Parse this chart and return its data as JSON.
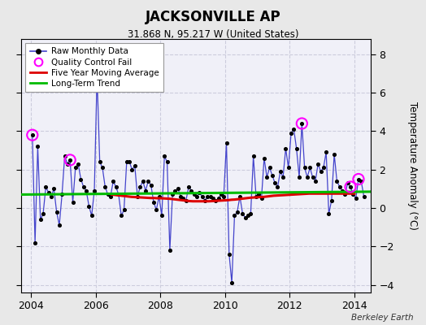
{
  "title": "JACKSONVILLE AP",
  "subtitle": "31.868 N, 95.217 W (United States)",
  "ylabel": "Temperature Anomaly (°C)",
  "credit": "Berkeley Earth",
  "ylim": [
    -4.4,
    8.8
  ],
  "yticks": [
    -4,
    -2,
    0,
    2,
    4,
    6,
    8
  ],
  "xlim": [
    2003.7,
    2014.5
  ],
  "xticks": [
    2004,
    2006,
    2008,
    2010,
    2012,
    2014
  ],
  "bg_color": "#e8e8e8",
  "plot_bg_color": "#f0f0f8",
  "grid_color": "#ccccdd",
  "raw_color": "#4444cc",
  "raw_dot_color": "#000000",
  "ma_color": "#dd0000",
  "trend_color": "#00bb00",
  "qc_color": "#ff00ff",
  "raw_x": [
    2004.0417,
    2004.125,
    2004.208,
    2004.292,
    2004.375,
    2004.458,
    2004.542,
    2004.625,
    2004.708,
    2004.792,
    2004.875,
    2004.958,
    2005.042,
    2005.125,
    2005.208,
    2005.292,
    2005.375,
    2005.458,
    2005.542,
    2005.625,
    2005.708,
    2005.792,
    2005.875,
    2005.958,
    2006.042,
    2006.125,
    2006.208,
    2006.292,
    2006.375,
    2006.458,
    2006.542,
    2006.625,
    2006.708,
    2006.792,
    2006.875,
    2006.958,
    2007.042,
    2007.125,
    2007.208,
    2007.292,
    2007.375,
    2007.458,
    2007.542,
    2007.625,
    2007.708,
    2007.792,
    2007.875,
    2007.958,
    2008.042,
    2008.125,
    2008.208,
    2008.292,
    2008.375,
    2008.458,
    2008.542,
    2008.625,
    2008.708,
    2008.792,
    2008.875,
    2008.958,
    2009.042,
    2009.125,
    2009.208,
    2009.292,
    2009.375,
    2009.458,
    2009.542,
    2009.625,
    2009.708,
    2009.792,
    2009.875,
    2009.958,
    2010.042,
    2010.125,
    2010.208,
    2010.292,
    2010.375,
    2010.458,
    2010.542,
    2010.625,
    2010.708,
    2010.792,
    2010.875,
    2010.958,
    2011.042,
    2011.125,
    2011.208,
    2011.292,
    2011.375,
    2011.458,
    2011.542,
    2011.625,
    2011.708,
    2011.792,
    2011.875,
    2011.958,
    2012.042,
    2012.125,
    2012.208,
    2012.292,
    2012.375,
    2012.458,
    2012.542,
    2012.625,
    2012.708,
    2012.792,
    2012.875,
    2012.958,
    2013.042,
    2013.125,
    2013.208,
    2013.292,
    2013.375,
    2013.458,
    2013.542,
    2013.625,
    2013.708,
    2013.792,
    2013.875,
    2013.958,
    2014.042,
    2014.125,
    2014.208,
    2014.292
  ],
  "raw_y": [
    3.8,
    -1.8,
    3.2,
    -0.6,
    -0.3,
    1.1,
    0.8,
    0.6,
    1.0,
    -0.2,
    -0.9,
    0.7,
    2.7,
    2.3,
    2.5,
    0.3,
    2.1,
    2.3,
    1.5,
    1.1,
    0.9,
    0.1,
    -0.4,
    0.9,
    6.9,
    2.4,
    2.1,
    1.1,
    0.7,
    0.6,
    1.4,
    1.1,
    0.7,
    -0.4,
    -0.1,
    2.4,
    2.4,
    2.0,
    2.2,
    0.6,
    1.1,
    1.4,
    0.9,
    1.4,
    1.2,
    0.3,
    -0.1,
    0.6,
    -0.4,
    2.7,
    2.4,
    -2.2,
    0.7,
    0.9,
    1.0,
    0.6,
    0.5,
    0.4,
    1.1,
    0.9,
    0.7,
    0.6,
    0.8,
    0.6,
    0.4,
    0.6,
    0.6,
    0.5,
    0.4,
    0.5,
    0.7,
    0.6,
    3.4,
    -2.4,
    -3.9,
    -0.4,
    -0.2,
    0.6,
    -0.3,
    -0.5,
    -0.4,
    -0.3,
    2.7,
    0.6,
    0.7,
    0.5,
    2.6,
    1.6,
    2.1,
    1.7,
    1.3,
    1.1,
    1.9,
    1.6,
    3.1,
    2.1,
    3.9,
    4.1,
    3.1,
    1.6,
    4.4,
    2.1,
    1.6,
    2.1,
    1.6,
    1.4,
    2.3,
    1.9,
    2.1,
    2.9,
    -0.3,
    0.4,
    2.8,
    1.4,
    1.1,
    0.9,
    0.7,
    1.3,
    1.1,
    0.7,
    0.5,
    1.5,
    1.4,
    0.6
  ],
  "ma_x": [
    2006.5,
    2006.6,
    2006.7,
    2006.8,
    2006.9,
    2007.0,
    2007.1,
    2007.2,
    2007.3,
    2007.4,
    2007.5,
    2007.6,
    2007.7,
    2007.8,
    2007.9,
    2008.0,
    2008.1,
    2008.2,
    2008.3,
    2008.4,
    2008.5,
    2008.6,
    2008.7,
    2008.8,
    2008.9,
    2009.0,
    2009.1,
    2009.2,
    2009.3,
    2009.4,
    2009.5,
    2009.6,
    2009.7,
    2009.8,
    2009.9,
    2010.0,
    2010.1,
    2010.2,
    2010.3,
    2010.4,
    2010.5,
    2010.6,
    2010.7,
    2010.8,
    2010.9,
    2011.0,
    2011.1,
    2011.2,
    2011.3,
    2011.4,
    2011.5,
    2011.6,
    2011.7,
    2011.8,
    2011.9,
    2012.0,
    2012.1,
    2012.2,
    2012.3,
    2012.4,
    2012.5,
    2012.6,
    2012.7,
    2012.8,
    2012.9,
    2013.0,
    2013.1,
    2013.2,
    2013.3,
    2013.4,
    2013.5,
    2013.6,
    2013.7,
    2013.8,
    2013.9,
    2014.0
  ],
  "ma_y": [
    0.7,
    0.68,
    0.66,
    0.64,
    0.62,
    0.6,
    0.58,
    0.57,
    0.56,
    0.55,
    0.54,
    0.53,
    0.52,
    0.52,
    0.51,
    0.51,
    0.5,
    0.49,
    0.48,
    0.46,
    0.44,
    0.42,
    0.4,
    0.38,
    0.36,
    0.35,
    0.35,
    0.35,
    0.35,
    0.35,
    0.35,
    0.36,
    0.37,
    0.38,
    0.39,
    0.4,
    0.41,
    0.43,
    0.44,
    0.46,
    0.48,
    0.5,
    0.52,
    0.54,
    0.55,
    0.56,
    0.57,
    0.58,
    0.6,
    0.62,
    0.64,
    0.65,
    0.66,
    0.67,
    0.68,
    0.69,
    0.7,
    0.71,
    0.72,
    0.73,
    0.74,
    0.75,
    0.75,
    0.75,
    0.75,
    0.75,
    0.75,
    0.75,
    0.75,
    0.75,
    0.75,
    0.75,
    0.75,
    0.75,
    0.75,
    0.75
  ],
  "trend_x": [
    2003.7,
    2014.5
  ],
  "trend_y": [
    0.7,
    0.85
  ],
  "qc_points": [
    [
      2004.0417,
      3.8
    ],
    [
      2005.208,
      2.5
    ],
    [
      2012.375,
      4.4
    ],
    [
      2013.875,
      1.1
    ],
    [
      2014.125,
      1.5
    ]
  ]
}
